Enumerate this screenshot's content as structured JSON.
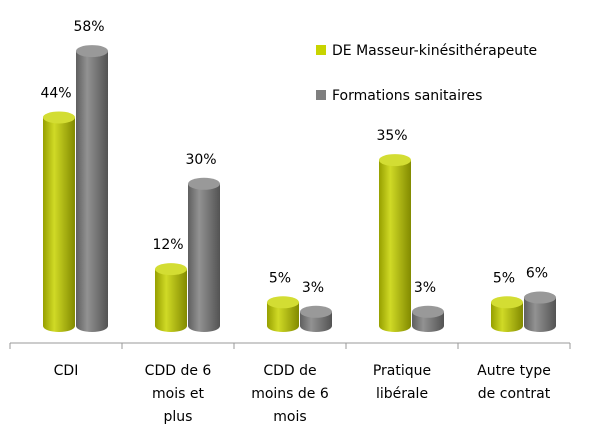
{
  "chart_data": {
    "type": "bar",
    "categories": [
      "CDI",
      "CDD de 6\nmois et\nplus",
      "CDD de\nmoins de 6\nmois",
      "Pratique\nlibérale",
      "Autre type\nde contrat"
    ],
    "series": [
      {
        "name": "DE Masseur-kinésithérapeute",
        "color": "#c8d400",
        "values": [
          44,
          12,
          5,
          35,
          5
        ],
        "value_labels": [
          "44%",
          "12%",
          "5%",
          "35%",
          "5%"
        ]
      },
      {
        "name": "Formations sanitaires",
        "color": "#7f7f7f",
        "values": [
          58,
          30,
          3,
          3,
          6
        ],
        "value_labels": [
          "58%",
          "30%",
          "3%",
          "3%",
          "6%"
        ]
      }
    ],
    "legend": "upper right"
  }
}
